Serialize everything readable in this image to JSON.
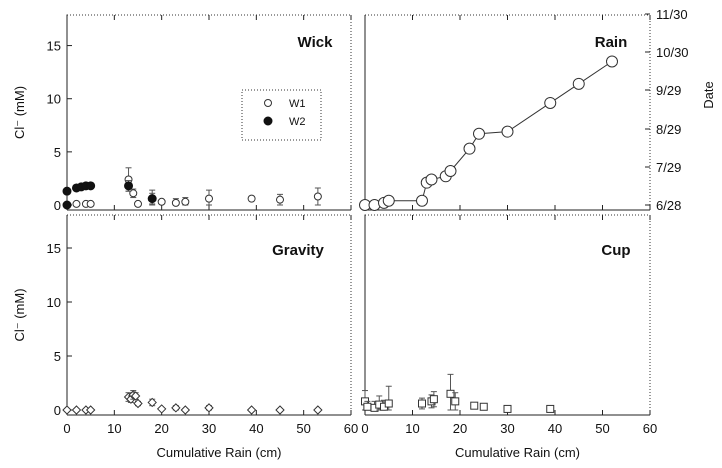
{
  "chart_data": [
    {
      "id": "wick",
      "type": "scatter",
      "title": "Wick",
      "xlim": [
        0,
        60
      ],
      "ylim": [
        0,
        17.5
      ],
      "xticks": [
        "",
        "",
        "",
        "",
        "",
        "",
        ""
      ],
      "yticks": [
        "0",
        "5",
        "10",
        "15"
      ],
      "ytick_values": [
        0,
        5,
        10,
        15
      ],
      "ylabel": "Cl⁻ (mM)",
      "legend": {
        "placement": "center-right",
        "entries": [
          "W1",
          "W2"
        ]
      },
      "series": [
        {
          "name": "W1",
          "marker": "open-circle",
          "x": [
            2,
            4,
            5,
            13,
            14,
            15,
            18,
            20,
            23,
            25,
            30,
            39,
            45,
            53
          ],
          "y": [
            0.1,
            0.1,
            0.1,
            2.4,
            1.1,
            0.1,
            0.6,
            0.3,
            0.2,
            0.3,
            0.6,
            0.6,
            0.5,
            0.8
          ],
          "err": [
            0,
            0,
            0,
            1.1,
            0.4,
            0,
            0.8,
            0,
            0.4,
            0.4,
            0.8,
            0,
            0.5,
            0.8
          ]
        },
        {
          "name": "W2",
          "marker": "filled-circle",
          "x": [
            0,
            0,
            2,
            3,
            4,
            5,
            13,
            18
          ],
          "y": [
            0.0,
            1.3,
            1.6,
            1.7,
            1.8,
            1.8,
            1.8,
            0.6
          ],
          "err": [
            0,
            0,
            0,
            0,
            0,
            0,
            0.5,
            0.5
          ]
        }
      ]
    },
    {
      "id": "rain",
      "type": "line",
      "title": "Rain",
      "xlim": [
        0,
        60
      ],
      "ylim": [
        0,
        17.5
      ],
      "xticks": [
        "",
        "",
        "",
        "",
        "",
        "",
        ""
      ],
      "yticks_right": [
        "6/28",
        "7/29",
        "8/29",
        "9/29",
        "10/30",
        "11/30"
      ],
      "ylabel_right": "Date",
      "series": [
        {
          "marker": "open-circle-large",
          "x": [
            0,
            2,
            4,
            5,
            12,
            13,
            14,
            17,
            18,
            22,
            24,
            30,
            39,
            45,
            52
          ],
          "y": [
            0.0,
            0.0,
            0.2,
            0.4,
            0.4,
            2.1,
            2.4,
            2.7,
            3.2,
            5.3,
            6.7,
            6.9,
            9.6,
            11.4,
            13.5
          ]
        }
      ]
    },
    {
      "id": "gravity",
      "type": "scatter",
      "title": "Gravity",
      "xlim": [
        0,
        60
      ],
      "ylim": [
        0,
        17.5
      ],
      "xticks": [
        "0",
        "10",
        "20",
        "30",
        "40",
        "50",
        "60"
      ],
      "yticks": [
        "0",
        "5",
        "10",
        "15"
      ],
      "ytick_values": [
        0,
        5,
        10,
        15
      ],
      "xlabel": "Cumulative Rain (cm)",
      "ylabel": "Cl⁻ (mM)",
      "series": [
        {
          "marker": "open-diamond",
          "x": [
            0,
            2,
            4,
            5,
            13,
            13.5,
            14,
            14.5,
            15,
            18,
            20,
            23,
            25,
            30,
            39,
            45,
            53
          ],
          "y": [
            0.0,
            0.0,
            0.0,
            0.0,
            1.2,
            1.0,
            1.4,
            1.3,
            0.6,
            0.7,
            0.1,
            0.2,
            0.0,
            0.2,
            0.0,
            0.0,
            0.0
          ],
          "err": [
            0,
            0,
            0,
            0,
            0.4,
            0.3,
            0.4,
            0.3,
            0.2,
            0.3,
            0,
            0.2,
            0,
            0.2,
            0,
            0,
            0
          ]
        }
      ]
    },
    {
      "id": "cup",
      "type": "scatter",
      "title": "Cup",
      "xlim": [
        0,
        60
      ],
      "ylim": [
        0,
        17.5
      ],
      "xticks": [
        "0",
        "10",
        "20",
        "30",
        "40",
        "50",
        "60"
      ],
      "xlabel": "Cumulative Rain (cm)",
      "series": [
        {
          "marker": "open-square",
          "x": [
            0,
            0.5,
            2,
            3,
            4,
            5,
            12,
            14,
            14.5,
            18,
            19,
            23,
            25,
            30,
            39
          ],
          "y": [
            0.8,
            0.3,
            0.2,
            0.5,
            0.3,
            0.6,
            0.6,
            0.8,
            1.0,
            1.5,
            0.8,
            0.4,
            0.3,
            0.1,
            0.1
          ],
          "err": [
            1.0,
            0.5,
            0.6,
            0.8,
            0.6,
            1.6,
            0.5,
            0.6,
            0.7,
            1.8,
            0.8,
            0.2,
            0.2,
            0.3,
            0.3
          ]
        }
      ]
    }
  ]
}
